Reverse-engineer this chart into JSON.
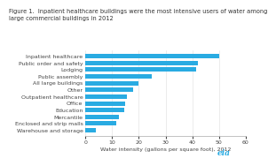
{
  "title": "Figure 1.  Inpatient healthcare buildings were the most intensive users of water among\nlarge commercial buildings in 2012",
  "categories": [
    "Inpatient healthcare",
    "Public order and safety",
    "Lodging",
    "Public assembly",
    "All large buildings",
    "Other",
    "Outpatient healthcare",
    "Office",
    "Education",
    "Mercantile",
    "Enclosed and strip malls",
    "Warehouse and storage"
  ],
  "values": [
    50,
    42,
    41.5,
    25,
    20,
    18,
    15.5,
    15,
    14.5,
    12.5,
    11.5,
    4
  ],
  "bar_color": "#29abe2",
  "xlabel": "Water intensity (gallons per square foot), 2012",
  "xlim": [
    0,
    60
  ],
  "xticks": [
    0,
    10,
    20,
    30,
    40,
    50,
    60
  ],
  "title_fontsize": 4.8,
  "label_fontsize": 4.5,
  "tick_fontsize": 4.5,
  "xlabel_fontsize": 4.5,
  "background_color": "#ffffff",
  "logo_text": "eia",
  "logo_color": "#29abe2"
}
